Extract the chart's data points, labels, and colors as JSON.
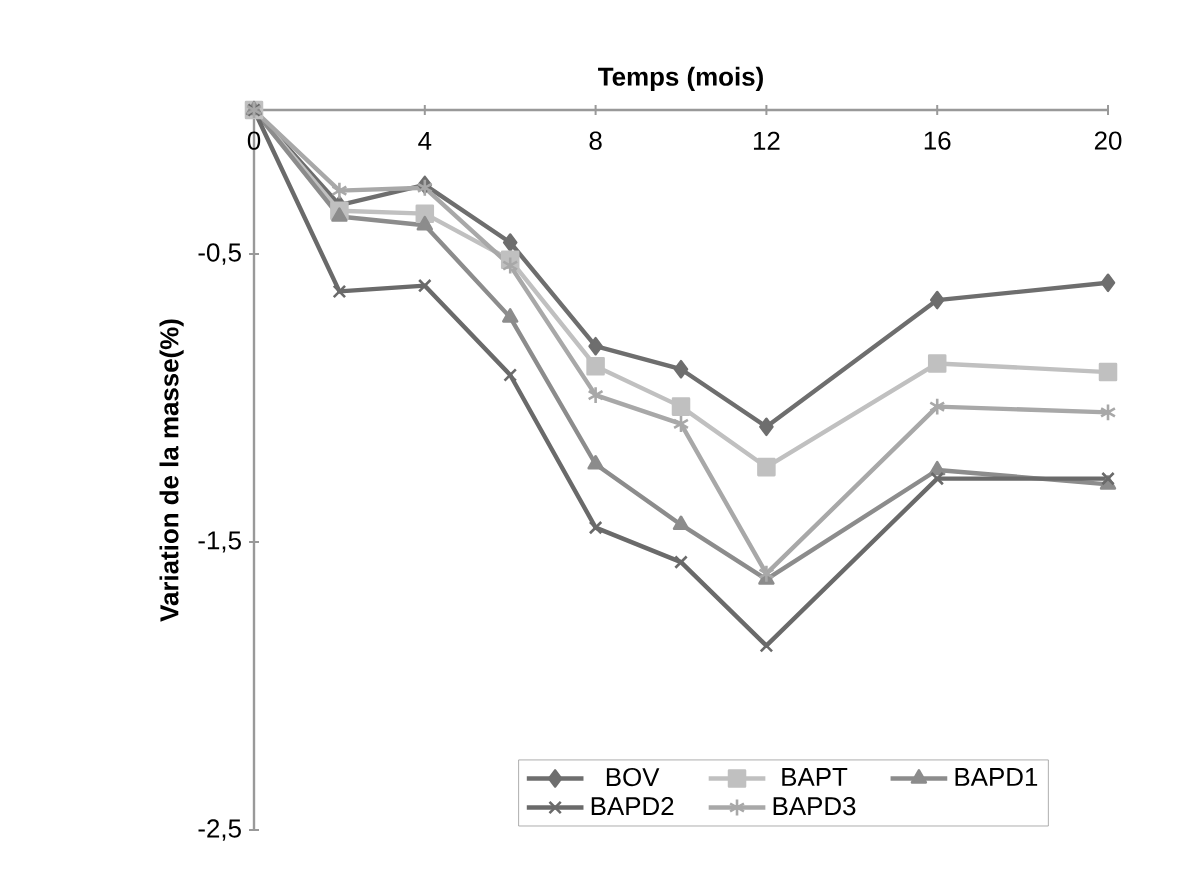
{
  "chart_data": {
    "type": "line",
    "xlabel": "Temps (mois)",
    "ylabel": "Variation de la masse(%)",
    "x": [
      0,
      2,
      4,
      6,
      8,
      10,
      12,
      16,
      20
    ],
    "xlim": [
      0,
      20
    ],
    "xticks": [
      0,
      4,
      8,
      12,
      16,
      20
    ],
    "ylim": [
      -2.5,
      0
    ],
    "yticks": [
      {
        "value": -2.5,
        "label": "-2,5"
      },
      {
        "value": -1.5,
        "label": "-1,5"
      },
      {
        "value": -0.5,
        "label": "-0,5"
      }
    ],
    "grid": false,
    "legend": "bottom",
    "line_style": "solid",
    "series": [
      {
        "name": "BOV",
        "color": "#6e6e6e",
        "marker": "diamond",
        "values": [
          0,
          -0.33,
          -0.26,
          -0.46,
          -0.82,
          -0.9,
          -1.1,
          -0.66,
          -0.6
        ]
      },
      {
        "name": "BAPT",
        "color": "#c0c0c0",
        "marker": "square",
        "values": [
          0,
          -0.35,
          -0.36,
          -0.52,
          -0.89,
          -1.03,
          -1.24,
          -0.88,
          -0.91
        ]
      },
      {
        "name": "BAPD1",
        "color": "#8c8c8c",
        "marker": "triangle",
        "values": [
          0,
          -0.37,
          -0.4,
          -0.72,
          -1.23,
          -1.44,
          -1.63,
          -1.25,
          -1.3
        ]
      },
      {
        "name": "BAPD2",
        "color": "#6a6a6a",
        "marker": "cross",
        "values": [
          0,
          -0.63,
          -0.61,
          -0.92,
          -1.45,
          -1.57,
          -1.86,
          -1.28,
          -1.28
        ]
      },
      {
        "name": "BAPD3",
        "color": "#a8a8a8",
        "marker": "cross",
        "values": [
          0,
          -0.28,
          -0.27,
          -0.54,
          -0.99,
          -1.09,
          -1.61,
          -1.03,
          -1.05
        ]
      }
    ]
  }
}
